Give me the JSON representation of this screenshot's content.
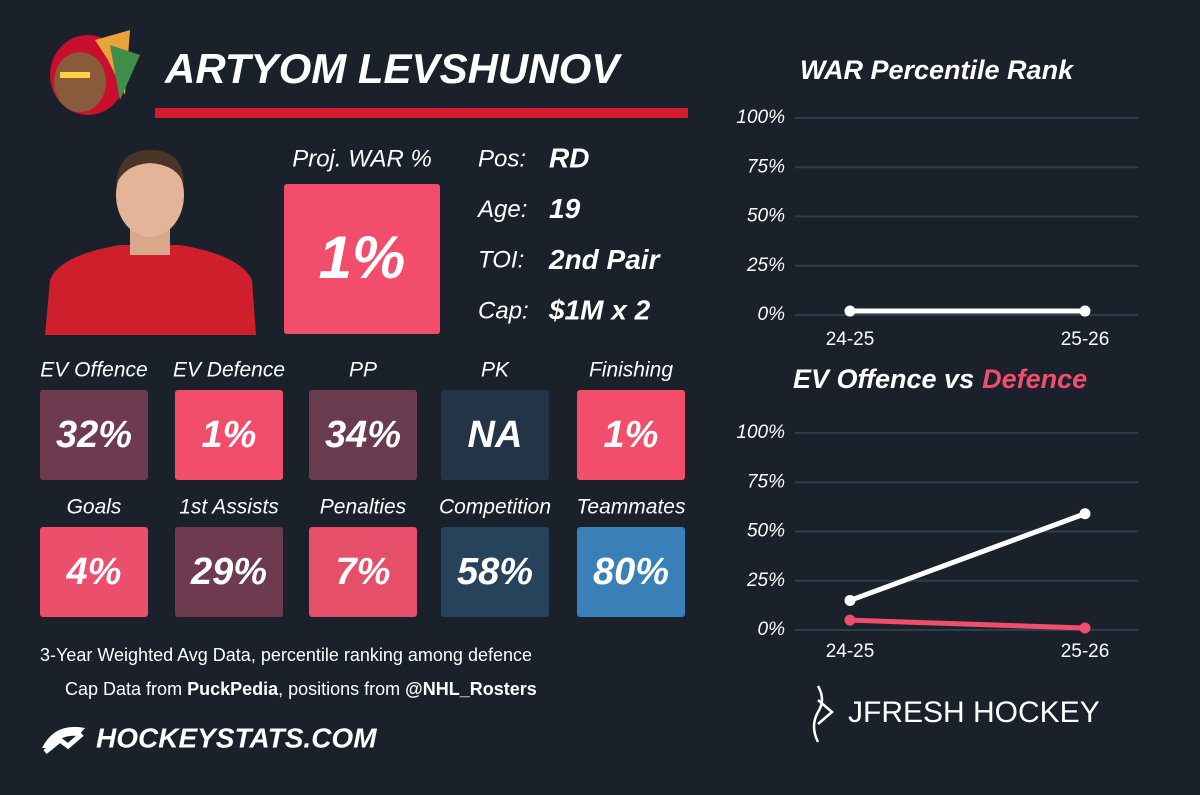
{
  "header": {
    "name": "ARTYOM LEVSHUNOV"
  },
  "proj_war": {
    "label": "Proj. WAR %",
    "value": "1%",
    "color": "#f24e6c"
  },
  "info": [
    {
      "label": "Pos:",
      "value": "RD"
    },
    {
      "label": "Age:",
      "value": "19"
    },
    {
      "label": "TOI:",
      "value": "2nd Pair"
    },
    {
      "label": "Cap:",
      "value": "$1M x 2"
    }
  ],
  "tiles": [
    {
      "label": "EV Offence",
      "value": "32%",
      "color": "#6e3a50"
    },
    {
      "label": "EV Defence",
      "value": "1%",
      "color": "#f24e6c"
    },
    {
      "label": "PP",
      "value": "34%",
      "color": "#6a3a4e"
    },
    {
      "label": "PK",
      "value": "NA",
      "color": "#243447"
    },
    {
      "label": "Finishing",
      "value": "1%",
      "color": "#f24e6c"
    },
    {
      "label": "Goals",
      "value": "4%",
      "color": "#ec4f6b"
    },
    {
      "label": "1st Assists",
      "value": "29%",
      "color": "#6e3a50"
    },
    {
      "label": "Penalties",
      "value": "7%",
      "color": "#e64f6a"
    },
    {
      "label": "Competition",
      "value": "58%",
      "color": "#27435c"
    },
    {
      "label": "Teammates",
      "value": "80%",
      "color": "#3a80b8"
    }
  ],
  "footer": {
    "note": "3-Year Weighted Avg Data, percentile ranking among defence",
    "credit": [
      "Cap Data from ",
      "PuckPedia",
      ", positions from ",
      "@NHL_Rosters"
    ],
    "site": "HOCKEYSTATS.COM",
    "brand": "JFRESH HOCKEY"
  },
  "chart_data": [
    {
      "type": "line",
      "title": "WAR Percentile Rank",
      "categories": [
        "24-25",
        "25-26"
      ],
      "series": [
        {
          "color": "#ffffff",
          "values": [
            2,
            2
          ]
        }
      ],
      "ylim": [
        0,
        100
      ],
      "yticks": [
        {
          "value": 0,
          "label": "0%"
        },
        {
          "value": 25,
          "label": "25%"
        },
        {
          "value": 50,
          "label": "50%"
        },
        {
          "value": 75,
          "label": "75%"
        },
        {
          "value": 100,
          "label": "100%"
        }
      ],
      "grid": true
    },
    {
      "type": "line",
      "title": "EV Offence vs",
      "title_highlight": "Defence",
      "title_highlight_color": "#f24e6c",
      "categories": [
        "24-25",
        "25-26"
      ],
      "series": [
        {
          "color": "#ffffff",
          "values": [
            15,
            59
          ]
        },
        {
          "color": "#f24e6c",
          "values": [
            5,
            1
          ]
        }
      ],
      "ylim": [
        0,
        100
      ],
      "yticks": [
        {
          "value": 0,
          "label": "0%"
        },
        {
          "value": 25,
          "label": "25%"
        },
        {
          "value": 50,
          "label": "50%"
        },
        {
          "value": 75,
          "label": "75%"
        },
        {
          "value": 100,
          "label": "100%"
        }
      ],
      "grid": true
    }
  ]
}
